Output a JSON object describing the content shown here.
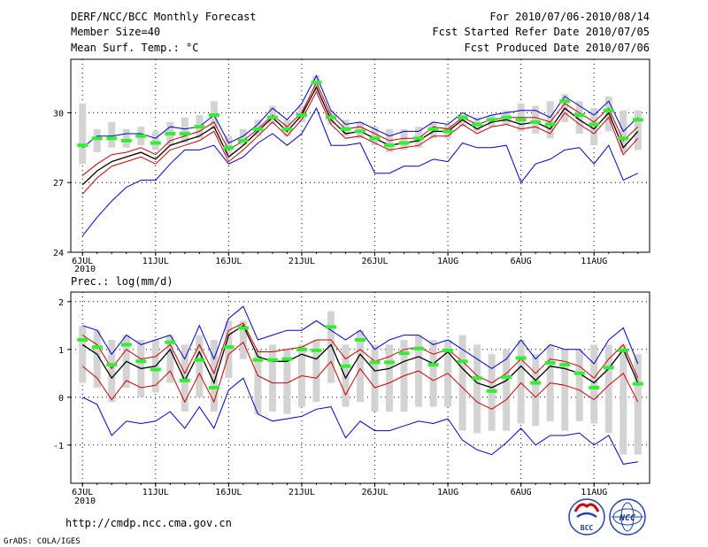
{
  "header": {
    "title": "DERF/NCC/BCC Monthly Forecast",
    "member_size": "Member Size=40",
    "variable_top": "Mean Surf. Temp.: °C",
    "period": "For 2010/07/06-2010/08/14",
    "started": "Fcst Started Refer Date 2010/07/05",
    "produced": "Fcst Produced Date 2010/07/06"
  },
  "variable_bottom": "Prec.: log(mm/d)",
  "footer": {
    "url": "http://cmdp.ncc.cma.gov.cn",
    "grads": "GrADS: COLA/IGES",
    "logo1_text": "BCC",
    "logo2_text": "NCC"
  },
  "colors": {
    "ensemble_mean": "#000000",
    "observation_marker": "#33ee33",
    "spread_bar": "#d3d3d3",
    "upper_lower": "#0000cc",
    "inner_band": "#cc0000",
    "grid": "#000000"
  },
  "chart_data": [
    {
      "type": "line",
      "id": "temperature",
      "ylabel": "Mean Surf. Temp.: °C",
      "xlabel_year": "2010",
      "x_ticks": [
        {
          "day": 0,
          "label": "6JUL"
        },
        {
          "day": 5,
          "label": "11JUL"
        },
        {
          "day": 10,
          "label": "16JUL"
        },
        {
          "day": 15,
          "label": "21JUL"
        },
        {
          "day": 20,
          "label": "26JUL"
        },
        {
          "day": 25,
          "label": "1AUG"
        },
        {
          "day": 30,
          "label": "6AUG"
        },
        {
          "day": 35,
          "label": "11AUG"
        }
      ],
      "x_range": [
        -0.8,
        38.8
      ],
      "ylim": [
        24,
        32.3
      ],
      "y_ticks": [
        24,
        27,
        30
      ],
      "grid": true,
      "days": [
        0,
        1,
        2,
        3,
        4,
        5,
        6,
        7,
        8,
        9,
        10,
        11,
        12,
        13,
        14,
        15,
        16,
        17,
        18,
        19,
        20,
        21,
        22,
        23,
        24,
        25,
        26,
        27,
        28,
        29,
        30,
        31,
        32,
        33,
        34,
        35,
        36,
        37,
        38
      ],
      "observation": [
        28.6,
        28.9,
        28.9,
        28.8,
        29.0,
        28.7,
        29.1,
        29.1,
        29.4,
        29.9,
        28.5,
        28.8,
        29.3,
        29.8,
        29.3,
        29.9,
        31.3,
        29.8,
        29.3,
        29.2,
        28.9,
        28.6,
        28.7,
        28.9,
        29.3,
        29.2,
        29.8,
        29.5,
        29.7,
        29.8,
        29.7,
        29.6,
        29.5,
        30.5,
        29.9,
        29.5,
        30.1,
        28.9,
        29.7
      ],
      "spread_low": [
        27.8,
        28.3,
        28.5,
        28.5,
        28.6,
        28.4,
        28.6,
        28.7,
        28.9,
        29.3,
        28.2,
        28.6,
        29.0,
        29.5,
        29.0,
        29.6,
        30.9,
        29.5,
        29.0,
        28.9,
        28.6,
        28.3,
        28.4,
        28.5,
        28.9,
        28.9,
        29.4,
        29.2,
        29.4,
        29.5,
        29.2,
        29.1,
        28.9,
        29.6,
        29.1,
        28.6,
        29.2,
        28.3,
        28.4
      ],
      "spread_high": [
        30.4,
        29.3,
        29.6,
        29.3,
        29.4,
        29.2,
        29.6,
        29.8,
        29.9,
        30.5,
        29.0,
        29.3,
        29.7,
        30.3,
        29.7,
        30.3,
        31.6,
        30.1,
        29.7,
        29.6,
        29.4,
        29.3,
        29.3,
        29.4,
        29.6,
        29.5,
        29.9,
        29.8,
        29.9,
        30.1,
        30.4,
        30.3,
        30.5,
        30.8,
        30.5,
        30.2,
        30.7,
        30.1,
        30.1
      ],
      "series": [
        {
          "name": "max",
          "color": "#0000cc",
          "values": [
            28.5,
            29.0,
            29.0,
            29.1,
            29.1,
            28.9,
            29.4,
            29.3,
            29.4,
            29.9,
            28.7,
            29.0,
            29.5,
            30.2,
            29.7,
            30.4,
            31.6,
            30.1,
            29.5,
            29.6,
            29.3,
            29.0,
            29.2,
            29.2,
            29.6,
            29.5,
            30.0,
            29.7,
            29.9,
            30.0,
            30.1,
            30.1,
            29.8,
            30.7,
            30.3,
            29.9,
            30.5,
            29.2,
            29.8
          ]
        },
        {
          "name": "upper",
          "color": "#cc0000",
          "values": [
            27.3,
            27.8,
            28.2,
            28.3,
            28.5,
            28.2,
            28.8,
            29.0,
            29.2,
            29.6,
            28.4,
            28.8,
            29.3,
            29.9,
            29.4,
            30.0,
            31.3,
            29.9,
            29.3,
            29.4,
            29.1,
            28.8,
            28.9,
            28.9,
            29.4,
            29.3,
            29.8,
            29.5,
            29.7,
            29.8,
            29.8,
            29.8,
            29.6,
            30.4,
            30.0,
            29.6,
            30.2,
            28.8,
            29.4
          ]
        },
        {
          "name": "mean",
          "color": "#000000",
          "values": [
            26.9,
            27.5,
            27.9,
            28.1,
            28.3,
            28.0,
            28.6,
            28.8,
            29.0,
            29.4,
            28.1,
            28.6,
            29.2,
            29.8,
            29.2,
            29.9,
            31.1,
            29.7,
            29.1,
            29.2,
            28.9,
            28.6,
            28.7,
            28.8,
            29.2,
            29.2,
            29.7,
            29.3,
            29.6,
            29.7,
            29.5,
            29.6,
            29.3,
            30.2,
            29.7,
            29.3,
            30.0,
            28.5,
            29.2
          ]
        },
        {
          "name": "lower",
          "color": "#cc0000",
          "values": [
            26.5,
            27.2,
            27.7,
            27.9,
            28.1,
            27.8,
            28.4,
            28.6,
            28.8,
            29.2,
            27.9,
            28.4,
            29.0,
            29.6,
            29.0,
            29.7,
            30.9,
            29.5,
            28.9,
            29.0,
            28.7,
            28.4,
            28.5,
            28.6,
            29.0,
            29.0,
            29.5,
            29.1,
            29.4,
            29.5,
            29.3,
            29.4,
            29.1,
            30.0,
            29.5,
            29.1,
            29.8,
            28.2,
            28.9
          ]
        },
        {
          "name": "min",
          "color": "#0000cc",
          "values": [
            24.7,
            25.5,
            26.2,
            26.8,
            27.1,
            27.1,
            27.8,
            28.4,
            28.4,
            28.6,
            27.8,
            28.1,
            28.7,
            29.1,
            28.6,
            29.1,
            30.2,
            28.6,
            28.6,
            28.7,
            27.4,
            27.4,
            27.7,
            27.7,
            28.0,
            27.9,
            28.7,
            28.5,
            28.5,
            28.6,
            27.0,
            27.8,
            28.0,
            28.4,
            28.5,
            27.8,
            28.6,
            27.1,
            27.4
          ]
        }
      ]
    },
    {
      "type": "line",
      "id": "precipitation",
      "ylabel": "Prec.: log(mm/d)",
      "xlabel_year": "2010",
      "x_ticks": [
        {
          "day": 0,
          "label": "6JUL"
        },
        {
          "day": 5,
          "label": "11JUL"
        },
        {
          "day": 10,
          "label": "16JUL"
        },
        {
          "day": 15,
          "label": "21JUL"
        },
        {
          "day": 20,
          "label": "26JUL"
        },
        {
          "day": 25,
          "label": "1AUG"
        },
        {
          "day": 30,
          "label": "6AUG"
        },
        {
          "day": 35,
          "label": "11AUG"
        }
      ],
      "x_range": [
        -0.8,
        38.8
      ],
      "ylim": [
        -1.8,
        2.2
      ],
      "y_ticks": [
        -1,
        0,
        1,
        2
      ],
      "grid": true,
      "days": [
        0,
        1,
        2,
        3,
        4,
        5,
        6,
        7,
        8,
        9,
        10,
        11,
        12,
        13,
        14,
        15,
        16,
        17,
        18,
        19,
        20,
        21,
        22,
        23,
        24,
        25,
        26,
        27,
        28,
        29,
        30,
        31,
        32,
        33,
        34,
        35,
        36,
        37,
        38
      ],
      "observation": [
        1.2,
        1.05,
        0.68,
        1.1,
        0.75,
        0.58,
        1.15,
        0.35,
        0.78,
        0.2,
        1.05,
        1.45,
        0.78,
        0.78,
        0.8,
        1.0,
        0.98,
        1.47,
        0.65,
        1.2,
        0.73,
        0.73,
        0.92,
        1.02,
        0.68,
        0.98,
        0.75,
        0.4,
        0.13,
        0.42,
        0.82,
        0.3,
        0.72,
        0.68,
        0.5,
        0.2,
        0.62,
        0.98,
        0.28
      ],
      "spread_low": [
        0.3,
        0.2,
        -0.1,
        0.2,
        0.0,
        0.1,
        0.3,
        -0.3,
        0.0,
        -0.3,
        0.4,
        0.8,
        -0.35,
        -0.3,
        -0.35,
        -0.2,
        -0.1,
        0.3,
        -0.2,
        -0.1,
        -0.3,
        -0.3,
        -0.3,
        -0.2,
        -0.2,
        -0.2,
        -0.7,
        -0.75,
        -0.7,
        -0.7,
        -0.55,
        -0.6,
        -0.5,
        -0.7,
        -0.5,
        -0.55,
        -0.75,
        -1.2,
        -1.2
      ],
      "spread_high": [
        1.5,
        1.4,
        1.2,
        1.3,
        1.2,
        1.2,
        1.3,
        1.1,
        1.3,
        1.2,
        1.6,
        1.6,
        1.0,
        1.1,
        1.0,
        1.1,
        1.2,
        1.8,
        1.1,
        1.4,
        1.1,
        1.1,
        1.2,
        1.3,
        1.2,
        1.2,
        1.3,
        1.1,
        0.9,
        1.0,
        1.2,
        0.9,
        1.1,
        1.0,
        1.0,
        1.1,
        1.1,
        1.1,
        0.9
      ],
      "series": [
        {
          "name": "max",
          "color": "#0000cc",
          "values": [
            1.5,
            1.4,
            0.9,
            1.3,
            1.1,
            1.2,
            1.3,
            0.8,
            1.5,
            0.8,
            1.65,
            1.9,
            1.2,
            1.3,
            1.4,
            1.4,
            1.6,
            1.4,
            1.2,
            1.4,
            1.0,
            1.2,
            1.3,
            1.3,
            1.1,
            1.2,
            1.0,
            0.8,
            0.6,
            0.8,
            1.2,
            0.8,
            1.1,
            1.0,
            1.0,
            0.7,
            1.2,
            1.45,
            0.7
          ]
        },
        {
          "name": "upper",
          "color": "#cc0000",
          "values": [
            1.3,
            1.1,
            0.6,
            1.0,
            0.8,
            0.85,
            1.1,
            0.5,
            1.1,
            0.5,
            1.4,
            1.55,
            0.95,
            0.95,
            1.0,
            1.05,
            1.2,
            1.2,
            0.8,
            1.0,
            0.75,
            0.85,
            1.0,
            1.05,
            0.9,
            1.0,
            0.75,
            0.45,
            0.3,
            0.5,
            0.8,
            0.5,
            0.8,
            0.75,
            0.65,
            0.4,
            0.8,
            1.1,
            0.4
          ]
        },
        {
          "name": "mean",
          "color": "#000000",
          "values": [
            1.1,
            0.9,
            0.4,
            0.75,
            0.6,
            0.65,
            1.0,
            0.35,
            0.95,
            0.3,
            1.3,
            1.5,
            0.85,
            0.75,
            0.75,
            0.9,
            0.8,
            1.1,
            0.4,
            0.9,
            0.55,
            0.6,
            0.75,
            0.85,
            0.7,
            0.95,
            0.6,
            0.3,
            0.2,
            0.35,
            0.65,
            0.35,
            0.65,
            0.6,
            0.5,
            0.3,
            0.6,
            1.0,
            0.3
          ]
        },
        {
          "name": "lower",
          "color": "#cc0000",
          "values": [
            0.65,
            0.4,
            -0.05,
            0.35,
            0.2,
            0.25,
            0.55,
            -0.1,
            0.5,
            -0.1,
            0.9,
            1.15,
            0.45,
            0.3,
            0.3,
            0.45,
            0.4,
            0.75,
            0.05,
            0.6,
            0.2,
            0.3,
            0.45,
            0.55,
            0.35,
            0.5,
            0.2,
            -0.1,
            -0.25,
            -0.05,
            0.3,
            0.0,
            0.3,
            0.25,
            0.15,
            -0.05,
            0.25,
            0.5,
            -0.1
          ]
        },
        {
          "name": "min",
          "color": "#0000cc",
          "values": [
            0.0,
            -0.15,
            -0.8,
            -0.5,
            -0.55,
            -0.5,
            -0.3,
            -0.65,
            -0.2,
            -0.65,
            0.15,
            0.4,
            -0.35,
            -0.5,
            -0.45,
            -0.4,
            -0.25,
            -0.2,
            -0.85,
            -0.5,
            -0.7,
            -0.7,
            -0.6,
            -0.5,
            -0.55,
            -0.45,
            -0.9,
            -1.1,
            -1.2,
            -0.95,
            -0.65,
            -1.0,
            -0.8,
            -0.8,
            -0.75,
            -1.0,
            -0.8,
            -1.4,
            -1.35
          ]
        }
      ]
    }
  ]
}
